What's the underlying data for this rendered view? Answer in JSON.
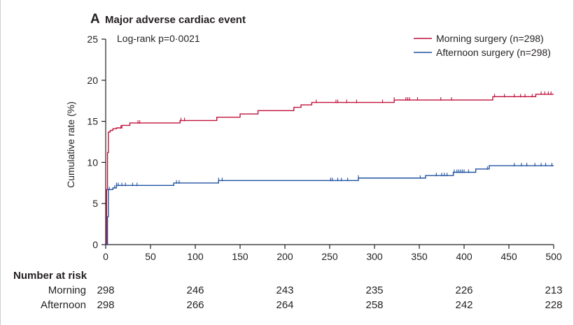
{
  "chart_data": {
    "type": "line",
    "subtype": "kaplan-meier",
    "panel_letter": "A",
    "title": "Major adverse cardiac event",
    "annotation": "Log-rank p=0·0021",
    "xlabel": "",
    "ylabel": "Cumulative rate (%)",
    "xlim": [
      0,
      500
    ],
    "ylim": [
      0,
      25
    ],
    "x_ticks": [
      0,
      50,
      100,
      150,
      200,
      250,
      300,
      350,
      400,
      450,
      500
    ],
    "y_ticks": [
      0,
      5,
      10,
      15,
      20,
      25
    ],
    "grid": false,
    "legend_position": "top-right",
    "series": [
      {
        "name": "Morning surgery (n=298)",
        "color": "#c0123c",
        "steps": [
          [
            0,
            0
          ],
          [
            1,
            6.7
          ],
          [
            2,
            11.2
          ],
          [
            3,
            13.7
          ],
          [
            5,
            13.9
          ],
          [
            8,
            14.1
          ],
          [
            12,
            14.2
          ],
          [
            18,
            14.5
          ],
          [
            27,
            14.8
          ],
          [
            83,
            15.1
          ],
          [
            124,
            15.5
          ],
          [
            150,
            15.9
          ],
          [
            170,
            16.3
          ],
          [
            210,
            16.7
          ],
          [
            218,
            17.0
          ],
          [
            230,
            17.3
          ],
          [
            322,
            17.6
          ],
          [
            432,
            18.0
          ],
          [
            480,
            18.3
          ],
          [
            500,
            18.3
          ]
        ],
        "censor_x": [
          17,
          36,
          38,
          84,
          88,
          235,
          257,
          259,
          269,
          280,
          309,
          322,
          335,
          337,
          339,
          348,
          374,
          386,
          434,
          445,
          456,
          463,
          468,
          476,
          486,
          490,
          494,
          497
        ]
      },
      {
        "name": "Afternoon surgery (n=298)",
        "color": "#2052a0",
        "steps": [
          [
            0,
            0
          ],
          [
            2,
            3.4
          ],
          [
            3,
            6.7
          ],
          [
            8,
            6.9
          ],
          [
            12,
            7.2
          ],
          [
            76,
            7.5
          ],
          [
            126,
            7.8
          ],
          [
            282,
            8.1
          ],
          [
            357,
            8.4
          ],
          [
            388,
            8.8
          ],
          [
            413,
            9.2
          ],
          [
            428,
            9.6
          ],
          [
            500,
            9.6
          ]
        ],
        "censor_x": [
          4,
          10,
          12,
          14,
          18,
          22,
          30,
          35,
          79,
          82,
          126,
          130,
          251,
          253,
          259,
          263,
          270,
          282,
          351,
          369,
          375,
          378,
          381,
          389,
          392,
          394,
          396,
          398,
          400,
          405,
          426,
          456,
          464,
          470,
          479,
          486,
          491,
          498
        ]
      }
    ],
    "risk_table": {
      "title": "Number at risk",
      "x": [
        0,
        100,
        200,
        300,
        400,
        500
      ],
      "rows": [
        {
          "label": "Morning",
          "values": [
            "298",
            "246",
            "243",
            "235",
            "226",
            "213"
          ]
        },
        {
          "label": "Afternoon",
          "values": [
            "298",
            "266",
            "264",
            "258",
            "242",
            "228"
          ]
        }
      ]
    }
  }
}
